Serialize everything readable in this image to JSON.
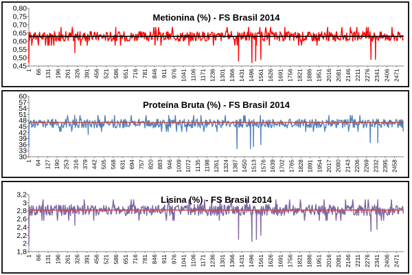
{
  "chart_data": [
    {
      "type": "line",
      "title": "Metionina (%) - FS Brasil 2014",
      "xlabel": "",
      "ylabel": "",
      "ylim": [
        0.45,
        0.8
      ],
      "yticks": [
        "0,45",
        "0,50",
        "0,55",
        "0,60",
        "0,65",
        "0,70",
        "0,75",
        "0,80"
      ],
      "xticks": [
        "1",
        "66",
        "131",
        "196",
        "261",
        "326",
        "391",
        "456",
        "521",
        "586",
        "651",
        "716",
        "781",
        "846",
        "911",
        "976",
        "1041",
        "1106",
        "1171",
        "1236",
        "1301",
        "1366",
        "1431",
        "1496",
        "1561",
        "1626",
        "1691",
        "1756",
        "1821",
        "1886",
        "1951",
        "2016",
        "2081",
        "2146",
        "2211",
        "2276",
        "2341",
        "2406",
        "2471"
      ],
      "x_max": 2520,
      "grid": false,
      "series": [
        {
          "color": "#ff0000",
          "base": 0.63,
          "spread": 0.03,
          "dips": [
            [
              1,
              0.47
            ],
            [
              310,
              0.53
            ],
            [
              1410,
              0.48
            ],
            [
              1500,
              0.47
            ],
            [
              1525,
              0.48
            ],
            [
              1560,
              0.49
            ],
            [
              2300,
              0.49
            ],
            [
              2330,
              0.49
            ]
          ]
        },
        {
          "color": "#000000",
          "values": [
            0.63,
            0.63
          ]
        }
      ]
    },
    {
      "type": "line",
      "title": "Proteína Bruta (%) - FS Brasil 2014",
      "xlabel": "",
      "ylabel": "",
      "ylim": [
        30,
        60
      ],
      "yticks": [
        "30",
        "33",
        "36",
        "39",
        "42",
        "45",
        "48",
        "51",
        "54",
        "57",
        "60"
      ],
      "xticks": [
        "1",
        "64",
        "127",
        "190",
        "253",
        "316",
        "379",
        "442",
        "505",
        "568",
        "631",
        "694",
        "757",
        "820",
        "883",
        "946",
        "1009",
        "1072",
        "1135",
        "1198",
        "1261",
        "1324",
        "1387",
        "1450",
        "1513",
        "1576",
        "1639",
        "1702",
        "1765",
        "1828",
        "1891",
        "1954",
        "2017",
        "2080",
        "2143",
        "2206",
        "2269",
        "2332",
        "2395",
        "2458"
      ],
      "x_max": 2520,
      "grid": false,
      "series": [
        {
          "color": "#4f81bd",
          "base": 46.5,
          "spread": 2.2,
          "dips": [
            [
              1,
              35
            ],
            [
              400,
              41
            ],
            [
              1400,
              34
            ],
            [
              1490,
              34
            ],
            [
              1510,
              35
            ],
            [
              1560,
              36
            ],
            [
              2295,
              37
            ],
            [
              2345,
              37
            ]
          ]
        },
        {
          "color": "#c0504d",
          "values": [
            47,
            47
          ]
        }
      ]
    },
    {
      "type": "line",
      "title": "Lisina (%) - FS Brasil 2014",
      "xlabel": "",
      "ylabel": "",
      "ylim": [
        1.8,
        3.2
      ],
      "yticks": [
        "1,8",
        "2",
        "2,2",
        "2,4",
        "2,6",
        "2,8",
        "3",
        "3,2"
      ],
      "xticks": [
        "1",
        "66",
        "131",
        "196",
        "261",
        "326",
        "391",
        "456",
        "521",
        "586",
        "651",
        "716",
        "781",
        "846",
        "911",
        "976",
        "1041",
        "1106",
        "1171",
        "1236",
        "1301",
        "1366",
        "1431",
        "1496",
        "1561",
        "1626",
        "1691",
        "1756",
        "1821",
        "1886",
        "1951",
        "2016",
        "2081",
        "2146",
        "2211",
        "2276",
        "2341",
        "2406",
        "2471"
      ],
      "x_max": 2520,
      "grid": false,
      "series": [
        {
          "color": "#8064a2",
          "base": 2.82,
          "spread": 0.14,
          "dips": [
            [
              1,
              1.95
            ],
            [
              310,
              2.45
            ],
            [
              1410,
              2.1
            ],
            [
              1500,
              2.05
            ],
            [
              1530,
              2.1
            ],
            [
              1560,
              2.2
            ],
            [
              2300,
              2.3
            ],
            [
              2340,
              2.35
            ]
          ]
        },
        {
          "color": "#c0504d",
          "values": [
            2.82,
            2.82
          ]
        }
      ]
    }
  ]
}
